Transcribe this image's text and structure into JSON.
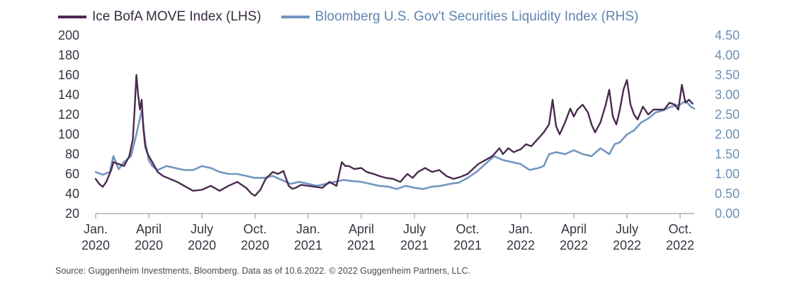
{
  "legend": {
    "lhs": "Ice BofA MOVE Index (LHS)",
    "rhs": "Bloomberg U.S. Gov't Securities Liquidity Index (RHS)"
  },
  "source": "Source: Guggenheim Investments, Bloomberg. Data as of 10.6.2022. © 2022 Guggenheim Partners, LLC.",
  "chart_data": {
    "type": "line",
    "colors": {
      "move": "#4a2a4f",
      "liquidity": "#7396c0",
      "axis": "#8a8a8a"
    },
    "x_ticks": [
      {
        "month": 0,
        "line1": "Jan.",
        "line2": "2020"
      },
      {
        "month": 3,
        "line1": "April",
        "line2": "2020"
      },
      {
        "month": 6,
        "line1": "July",
        "line2": "2020"
      },
      {
        "month": 9,
        "line1": "Oct.",
        "line2": "2020"
      },
      {
        "month": 12,
        "line1": "Jan.",
        "line2": "2021"
      },
      {
        "month": 15,
        "line1": "April",
        "line2": "2021"
      },
      {
        "month": 18,
        "line1": "July",
        "line2": "2021"
      },
      {
        "month": 21,
        "line1": "Oct.",
        "line2": "2021"
      },
      {
        "month": 24,
        "line1": "Jan.",
        "line2": "2022"
      },
      {
        "month": 27,
        "line1": "April",
        "line2": "2022"
      },
      {
        "month": 30,
        "line1": "July",
        "line2": "2022"
      },
      {
        "month": 33,
        "line1": "Oct.",
        "line2": "2022"
      }
    ],
    "y_left": {
      "min": 20,
      "max": 200,
      "ticks": [
        "200",
        "180",
        "160",
        "140",
        "120",
        "100",
        "80",
        "60",
        "40",
        "20"
      ]
    },
    "y_right": {
      "min": 0,
      "max": 4.5,
      "ticks": [
        "4.50",
        "4.00",
        "3.50",
        "3.00",
        "2.50",
        "2.00",
        "1.50",
        "1.00",
        "0.50",
        "0.00"
      ]
    },
    "series": [
      {
        "name": "Ice BofA MOVE Index (LHS)",
        "axis": "left",
        "x": [
          0,
          0.2,
          0.4,
          0.6,
          0.9,
          1.0,
          1.3,
          1.6,
          1.9,
          2.1,
          2.2,
          2.3,
          2.4,
          2.5,
          2.6,
          2.7,
          2.8,
          2.9,
          3.0,
          3.2,
          3.5,
          3.8,
          4.2,
          4.6,
          5.0,
          5.5,
          6.0,
          6.5,
          7.0,
          7.5,
          8.0,
          8.5,
          8.8,
          9.0,
          9.3,
          9.6,
          10.0,
          10.3,
          10.6,
          10.9,
          11.1,
          11.3,
          11.6,
          12.0,
          12.4,
          12.8,
          13.2,
          13.6,
          13.9,
          14.1,
          14.3,
          14.6,
          15.0,
          15.3,
          15.7,
          16.0,
          16.4,
          16.8,
          17.2,
          17.6,
          17.9,
          18.2,
          18.6,
          19.0,
          19.4,
          19.8,
          20.2,
          20.6,
          21.0,
          21.3,
          21.6,
          22.0,
          22.4,
          22.8,
          23.0,
          23.3,
          23.6,
          24.0,
          24.3,
          24.6,
          25.0,
          25.3,
          25.6,
          25.8,
          26.0,
          26.2,
          26.5,
          26.8,
          27.0,
          27.2,
          27.5,
          27.8,
          28.0,
          28.2,
          28.5,
          28.8,
          29.0,
          29.2,
          29.4,
          29.6,
          29.8,
          30.0,
          30.2,
          30.4,
          30.6,
          30.9,
          31.2,
          31.5,
          31.8,
          32.1,
          32.4,
          32.7,
          32.9,
          33.1,
          33.3,
          33.5,
          33.7
        ],
        "y": [
          55,
          50,
          47,
          52,
          65,
          72,
          70,
          68,
          78,
          95,
          125,
          160,
          140,
          125,
          135,
          105,
          88,
          82,
          78,
          72,
          62,
          58,
          55,
          52,
          48,
          43,
          44,
          48,
          43,
          48,
          52,
          46,
          40,
          38,
          44,
          55,
          62,
          60,
          63,
          48,
          45,
          46,
          49,
          48,
          47,
          46,
          52,
          48,
          72,
          68,
          68,
          65,
          66,
          62,
          60,
          58,
          56,
          55,
          52,
          60,
          56,
          62,
          66,
          62,
          64,
          58,
          55,
          57,
          60,
          65,
          70,
          74,
          78,
          86,
          80,
          86,
          82,
          85,
          90,
          88,
          96,
          102,
          110,
          135,
          108,
          100,
          112,
          126,
          118,
          125,
          130,
          122,
          110,
          102,
          112,
          130,
          145,
          118,
          110,
          125,
          145,
          155,
          130,
          120,
          115,
          128,
          120,
          125,
          125,
          125,
          132,
          130,
          125,
          150,
          132,
          135,
          131
        ],
        "ylim": [
          20,
          200
        ]
      },
      {
        "name": "Bloomberg U.S. Gov't Securities Liquidity Index (RHS)",
        "axis": "right",
        "x": [
          0,
          0.4,
          0.8,
          1.0,
          1.3,
          1.6,
          2.0,
          2.3,
          2.6,
          2.8,
          2.9,
          3.0,
          3.2,
          3.5,
          4.0,
          4.5,
          5.0,
          5.5,
          6.0,
          6.5,
          7.0,
          7.5,
          8.0,
          8.5,
          9.0,
          9.5,
          10.0,
          10.5,
          11.0,
          11.5,
          12.0,
          12.5,
          13.0,
          13.5,
          14.0,
          14.5,
          15.0,
          15.5,
          16.0,
          16.5,
          17.0,
          17.5,
          18.0,
          18.5,
          19.0,
          19.5,
          20.0,
          20.5,
          21.0,
          21.5,
          22.0,
          22.5,
          23.0,
          23.5,
          24.0,
          24.5,
          25.0,
          25.3,
          25.6,
          26.0,
          26.5,
          27.0,
          27.5,
          28.0,
          28.5,
          29.0,
          29.3,
          29.6,
          30.0,
          30.4,
          30.8,
          31.2,
          31.6,
          32.0,
          32.5,
          33.0,
          33.3,
          33.6,
          33.8
        ],
        "y": [
          1.05,
          0.98,
          1.05,
          1.45,
          1.12,
          1.3,
          1.45,
          2.0,
          2.6,
          1.8,
          1.6,
          1.35,
          1.2,
          1.1,
          1.2,
          1.15,
          1.1,
          1.1,
          1.2,
          1.15,
          1.05,
          1.0,
          1.0,
          0.95,
          0.9,
          0.9,
          0.95,
          0.85,
          0.75,
          0.8,
          0.75,
          0.7,
          0.75,
          0.8,
          0.85,
          0.82,
          0.8,
          0.75,
          0.7,
          0.68,
          0.62,
          0.7,
          0.65,
          0.62,
          0.68,
          0.7,
          0.75,
          0.78,
          0.9,
          1.05,
          1.25,
          1.45,
          1.35,
          1.3,
          1.25,
          1.1,
          1.15,
          1.2,
          1.5,
          1.55,
          1.5,
          1.6,
          1.5,
          1.45,
          1.65,
          1.5,
          1.75,
          1.8,
          2.0,
          2.1,
          2.3,
          2.4,
          2.55,
          2.6,
          2.7,
          2.75,
          2.85,
          2.7,
          2.65
        ],
        "ylim": [
          0,
          4.5
        ]
      }
    ]
  }
}
